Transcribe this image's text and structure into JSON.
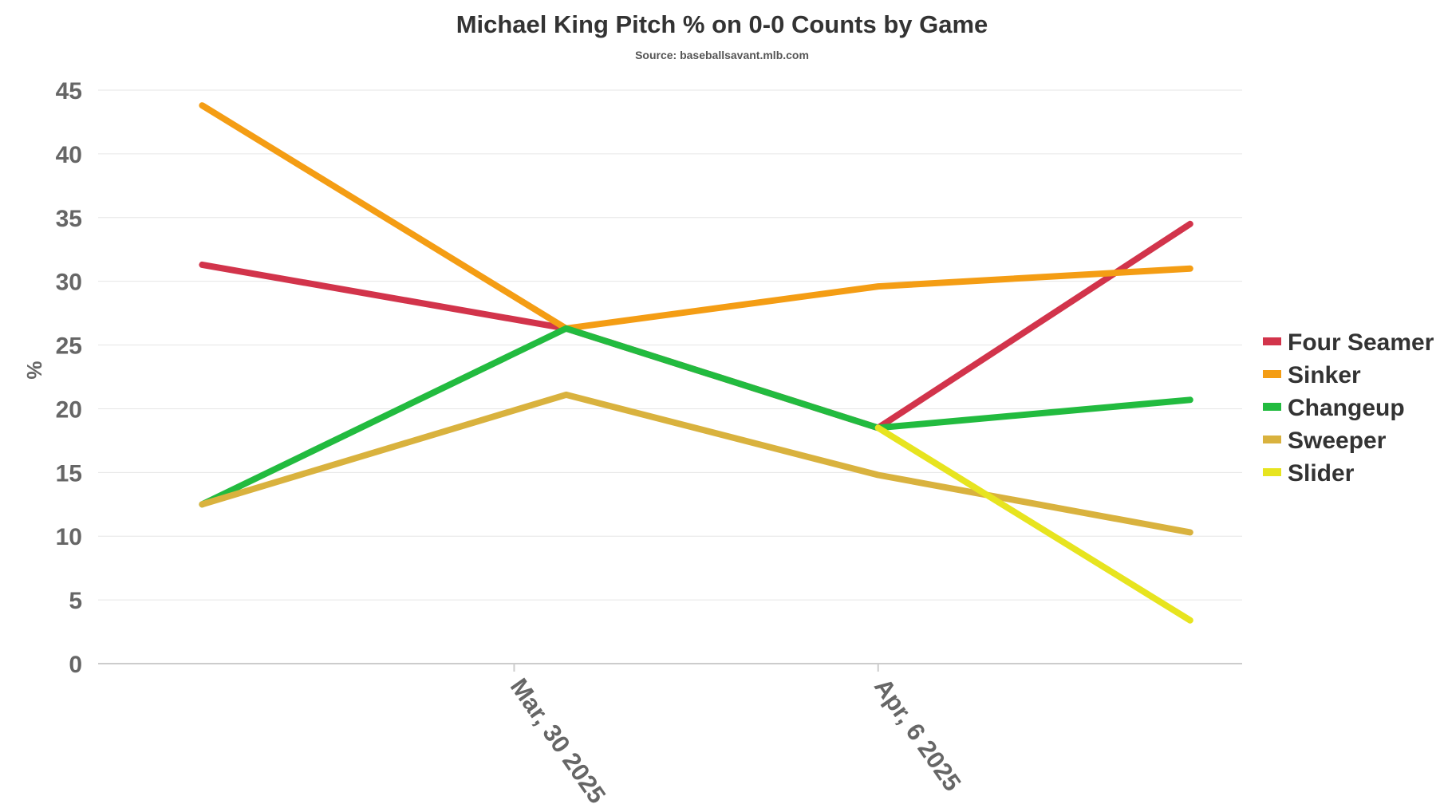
{
  "chart_data": {
    "type": "line",
    "title": "Michael King Pitch % on 0-0 Counts by Game",
    "subtitle": "Source: baseballsavant.mlb.com",
    "xlabel": "",
    "ylabel": "%",
    "x": [
      "2025-03-24",
      "2025-03-31",
      "2025-04-06",
      "2025-04-12"
    ],
    "xticks": [
      {
        "date": "2025-03-30",
        "label": "Mar, 30 2025"
      },
      {
        "date": "2025-04-06",
        "label": "Apr, 6 2025"
      }
    ],
    "xlim": [
      "2025-03-22",
      "2025-04-13"
    ],
    "ylim": [
      0,
      45
    ],
    "yticks": [
      0,
      5,
      10,
      15,
      20,
      25,
      30,
      35,
      40,
      45
    ],
    "grid": true,
    "legend_position": "right",
    "series": [
      {
        "name": "Four Seamer",
        "color": "#d2344b",
        "points": [
          [
            "2025-03-24",
            31.3
          ],
          [
            "2025-03-31",
            26.3
          ],
          [
            "2025-04-06",
            18.5
          ],
          [
            "2025-04-12",
            34.5
          ]
        ]
      },
      {
        "name": "Sinker",
        "color": "#f49d14",
        "points": [
          [
            "2025-03-24",
            43.8
          ],
          [
            "2025-03-31",
            26.3
          ],
          [
            "2025-04-06",
            29.6
          ],
          [
            "2025-04-12",
            31.0
          ]
        ]
      },
      {
        "name": "Changeup",
        "color": "#22bb3f",
        "points": [
          [
            "2025-03-24",
            12.5
          ],
          [
            "2025-03-31",
            26.3
          ],
          [
            "2025-04-06",
            18.5
          ],
          [
            "2025-04-12",
            20.7
          ]
        ]
      },
      {
        "name": "Sweeper",
        "color": "#d9b23e",
        "points": [
          [
            "2025-03-24",
            12.5
          ],
          [
            "2025-03-31",
            21.1
          ],
          [
            "2025-04-06",
            14.8
          ],
          [
            "2025-04-12",
            10.3
          ]
        ]
      },
      {
        "name": "Slider",
        "color": "#e7e41f",
        "points": [
          [
            "2025-04-06",
            18.5
          ],
          [
            "2025-04-12",
            3.4
          ]
        ]
      }
    ]
  }
}
